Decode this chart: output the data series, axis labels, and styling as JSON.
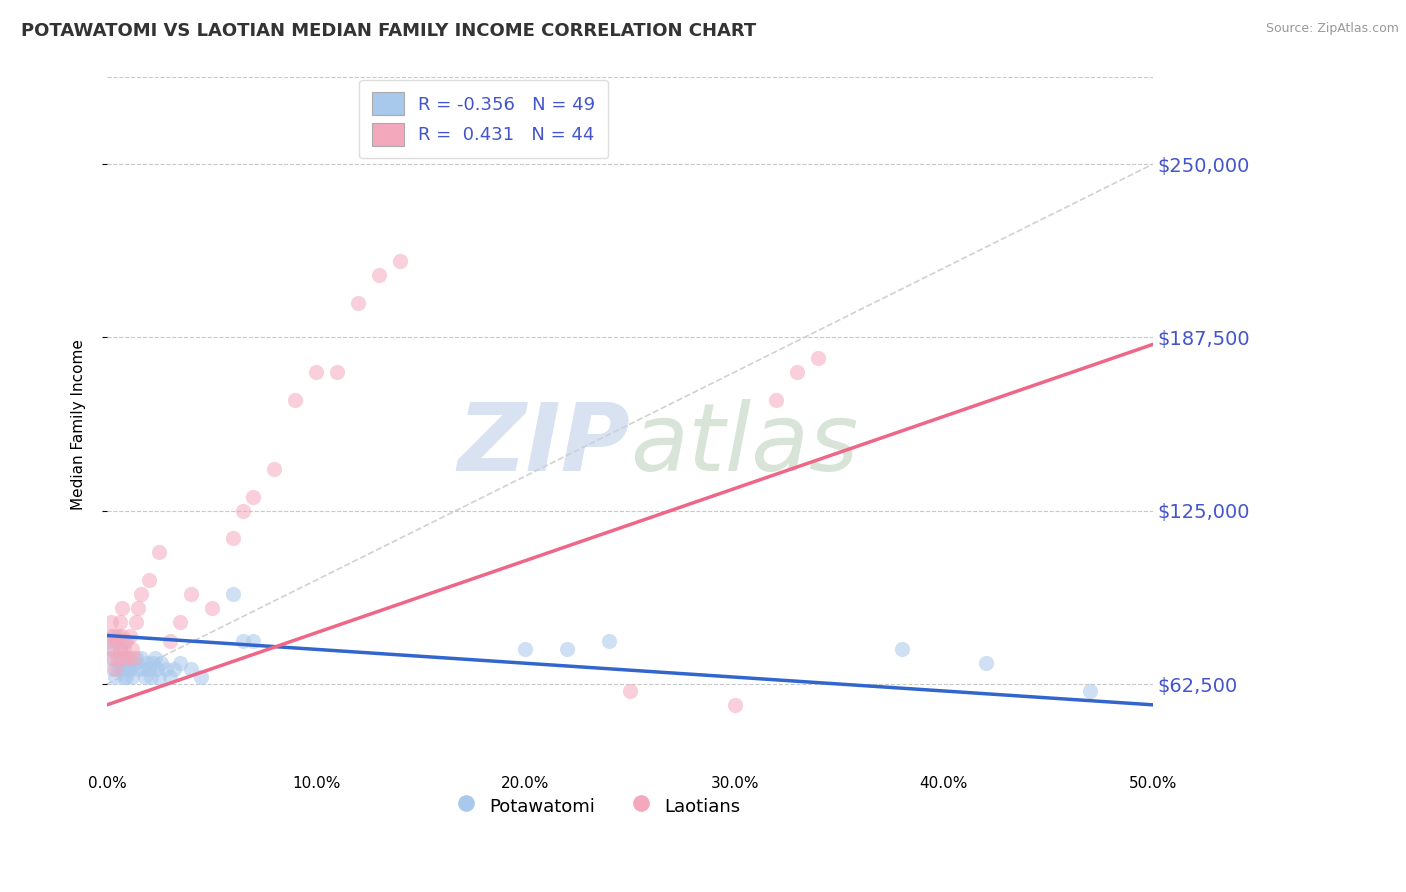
{
  "title": "POTAWATOMI VS LAOTIAN MEDIAN FAMILY INCOME CORRELATION CHART",
  "source_text": "Source: ZipAtlas.com",
  "ylabel": "Median Family Income",
  "xlim": [
    0.0,
    0.5
  ],
  "ylim": [
    31250,
    281250
  ],
  "yticks": [
    62500,
    125000,
    187500,
    250000
  ],
  "ytick_labels": [
    "$62,500",
    "$125,000",
    "$187,500",
    "$250,000"
  ],
  "xticks": [
    0.0,
    0.1,
    0.2,
    0.3,
    0.4,
    0.5
  ],
  "xtick_labels": [
    "0.0%",
    "10.0%",
    "20.0%",
    "30.0%",
    "40.0%",
    "50.0%"
  ],
  "blue_color": "#A8C8EC",
  "pink_color": "#F4A8BC",
  "blue_line_color": "#3366CC",
  "pink_line_color": "#EE6688",
  "ref_line_color": "#CCCCCC",
  "axis_color": "#4455CC",
  "legend_R_blue": "-0.356",
  "legend_N_blue": "49",
  "legend_R_pink": "0.431",
  "legend_N_pink": "44",
  "legend_label_blue": "Potawatomi",
  "legend_label_pink": "Laotians",
  "watermark_zip": "ZIP",
  "watermark_atlas": "atlas",
  "background_color": "#FFFFFF",
  "title_fontsize": 13,
  "blue_scatter_x": [
    0.001,
    0.002,
    0.003,
    0.003,
    0.004,
    0.004,
    0.005,
    0.005,
    0.006,
    0.006,
    0.007,
    0.007,
    0.008,
    0.008,
    0.009,
    0.009,
    0.01,
    0.01,
    0.011,
    0.012,
    0.013,
    0.014,
    0.015,
    0.016,
    0.017,
    0.018,
    0.019,
    0.02,
    0.021,
    0.022,
    0.023,
    0.024,
    0.025,
    0.026,
    0.028,
    0.03,
    0.032,
    0.035,
    0.04,
    0.045,
    0.06,
    0.065,
    0.07,
    0.2,
    0.22,
    0.24,
    0.38,
    0.42,
    0.47
  ],
  "blue_scatter_y": [
    78000,
    72000,
    68000,
    75000,
    80000,
    65000,
    72000,
    68000,
    75000,
    70000,
    68000,
    72000,
    65000,
    78000,
    70000,
    65000,
    68000,
    72000,
    68000,
    65000,
    70000,
    72000,
    68000,
    72000,
    68000,
    65000,
    70000,
    68000,
    65000,
    70000,
    72000,
    68000,
    65000,
    70000,
    68000,
    65000,
    68000,
    70000,
    68000,
    65000,
    95000,
    78000,
    78000,
    75000,
    75000,
    78000,
    75000,
    70000,
    60000
  ],
  "pink_scatter_x": [
    0.001,
    0.002,
    0.002,
    0.003,
    0.003,
    0.004,
    0.004,
    0.005,
    0.005,
    0.006,
    0.006,
    0.007,
    0.007,
    0.008,
    0.008,
    0.009,
    0.01,
    0.011,
    0.012,
    0.013,
    0.014,
    0.015,
    0.016,
    0.02,
    0.025,
    0.03,
    0.035,
    0.04,
    0.05,
    0.06,
    0.065,
    0.07,
    0.08,
    0.09,
    0.1,
    0.11,
    0.12,
    0.13,
    0.14,
    0.25,
    0.3,
    0.32,
    0.33,
    0.34
  ],
  "pink_scatter_y": [
    80000,
    85000,
    75000,
    80000,
    72000,
    78000,
    68000,
    72000,
    80000,
    75000,
    85000,
    80000,
    90000,
    72000,
    75000,
    78000,
    72000,
    80000,
    75000,
    72000,
    85000,
    90000,
    95000,
    100000,
    110000,
    78000,
    85000,
    95000,
    90000,
    115000,
    125000,
    130000,
    140000,
    165000,
    175000,
    175000,
    200000,
    210000,
    215000,
    60000,
    55000,
    165000,
    175000,
    180000
  ],
  "blue_trend_x": [
    0.0,
    0.5
  ],
  "blue_trend_y": [
    80000,
    55000
  ],
  "pink_trend_x": [
    0.0,
    0.5
  ],
  "pink_trend_y": [
    55000,
    185000
  ],
  "ref_line_x": [
    0.0,
    0.5
  ],
  "ref_line_y": [
    62500,
    250000
  ]
}
